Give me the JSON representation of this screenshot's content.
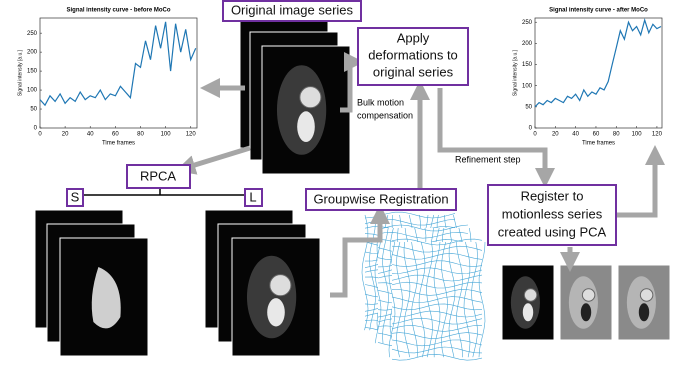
{
  "labels": {
    "original": "Original image series",
    "apply": [
      "Apply",
      "deformations to",
      "original series"
    ],
    "bulk": [
      "Bulk motion",
      "compensation"
    ],
    "refinement": "Refinement step",
    "register": [
      "Register to",
      "motionless series",
      "created using PCA"
    ],
    "rpca": "RPCA",
    "s": "S",
    "l": "L",
    "groupwise": "Groupwise Registration"
  },
  "chart_data": [
    {
      "type": "line",
      "title": "Signal intensity curve - before MoCo",
      "xlabel": "Time frames",
      "ylabel": "Signal intensity [a.u.]",
      "x": [
        0,
        4,
        8,
        12,
        16,
        20,
        24,
        28,
        32,
        36,
        40,
        44,
        48,
        52,
        56,
        60,
        64,
        68,
        72,
        76,
        80,
        84,
        88,
        92,
        96,
        100,
        104,
        108,
        112,
        116,
        120,
        124
      ],
      "series": [
        {
          "color": "#1f77b4",
          "values": [
            75,
            60,
            85,
            70,
            90,
            65,
            80,
            70,
            95,
            75,
            85,
            80,
            100,
            75,
            90,
            85,
            110,
            95,
            80,
            170,
            160,
            230,
            180,
            270,
            210,
            280,
            150,
            275,
            200,
            260,
            180,
            210
          ]
        }
      ],
      "xlim": [
        0,
        125
      ],
      "ylim": [
        0,
        290
      ],
      "xticks": [
        0,
        20,
        40,
        60,
        80,
        100,
        120
      ],
      "yticks": [
        0,
        50,
        100,
        150,
        200,
        250
      ]
    },
    {
      "type": "line",
      "title": "Signal intensity curve - after MoCo",
      "xlabel": "Time frames",
      "ylabel": "Signal intensity [a.u.]",
      "x": [
        0,
        4,
        8,
        12,
        16,
        20,
        24,
        28,
        32,
        36,
        40,
        44,
        48,
        52,
        56,
        60,
        64,
        68,
        72,
        76,
        80,
        84,
        88,
        92,
        96,
        100,
        104,
        108,
        112,
        116,
        120,
        124
      ],
      "series": [
        {
          "color": "#1f77b4",
          "values": [
            50,
            60,
            55,
            65,
            60,
            70,
            65,
            60,
            75,
            70,
            80,
            65,
            90,
            75,
            85,
            80,
            95,
            90,
            110,
            150,
            190,
            230,
            210,
            250,
            230,
            240,
            220,
            255,
            225,
            245,
            235,
            240
          ]
        }
      ],
      "xlim": [
        0,
        125
      ],
      "ylim": [
        0,
        260
      ],
      "xticks": [
        0,
        20,
        40,
        60,
        80,
        100,
        120
      ],
      "yticks": [
        0,
        50,
        100,
        150,
        200,
        250
      ]
    }
  ]
}
